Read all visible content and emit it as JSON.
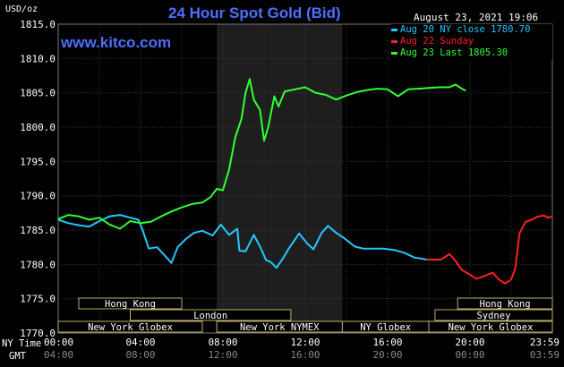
{
  "header": {
    "title": "24 Hour Spot Gold (Bid)",
    "unit": "USD/oz",
    "timestamp": "August 23, 2021 19:06",
    "site": "www.kitco.com"
  },
  "legend": [
    {
      "label": "Aug 20 NY close 1780.70",
      "color": "#22c8ff"
    },
    {
      "label": "Aug 22 Sunday",
      "color": "#ff2020"
    },
    {
      "label": "Aug 23 Last 1805.30",
      "color": "#30ff30"
    }
  ],
  "axis": {
    "x_row1_label": "NY Time",
    "x_row2_label": "GMT",
    "x_ticks_ny": [
      "00:00",
      "04:00",
      "08:00",
      "12:00",
      "16:00",
      "20:00",
      "23:59"
    ],
    "x_ticks_gmt": [
      "04:00",
      "08:00",
      "12:00",
      "16:00",
      "20:00",
      "00:00",
      "03:59"
    ]
  },
  "sessions": [
    {
      "label": "Hong Kong",
      "start": 1.0,
      "end": 6.0,
      "row": 0
    },
    {
      "label": "London",
      "start": 3.5,
      "end": 11.3,
      "row": 1
    },
    {
      "label": "New York Globex",
      "start": 0.0,
      "end": 7.0,
      "row": 2
    },
    {
      "label": "New York NYMEX",
      "start": 7.7,
      "end": 13.8,
      "row": 2
    },
    {
      "label": "NY Globex",
      "start": 13.8,
      "end": 18.0,
      "row": 2
    },
    {
      "label": "Hong Kong",
      "start": 19.4,
      "end": 24.0,
      "row": 0
    },
    {
      "label": "Sydney",
      "start": 18.3,
      "end": 24.0,
      "row": 1
    },
    {
      "label": "New York Globex",
      "start": 18.0,
      "end": 24.0,
      "row": 2
    }
  ],
  "chart_data": {
    "type": "line",
    "title": "24 Hour Spot Gold (Bid)",
    "ylabel": "USD/oz",
    "xlabel": "NY Time",
    "ylim": [
      1770,
      1815
    ],
    "yticks": [
      "1815.0",
      "1810.0",
      "1805.0",
      "1800.0",
      "1795.0",
      "1790.0",
      "1785.0",
      "1780.0",
      "1775.0",
      "1770.0"
    ],
    "xlim_hours": [
      0,
      24
    ],
    "x_ticks": [
      "00:00",
      "04:00",
      "08:00",
      "12:00",
      "16:00",
      "20:00",
      "23:59"
    ],
    "highlight_hours": [
      7.7,
      13.8
    ],
    "grid": true,
    "legend": "top-right",
    "series": [
      {
        "name": "Aug 20 NY close 1780.70",
        "color": "#22c8ff",
        "points": [
          [
            0.0,
            1786.5
          ],
          [
            0.5,
            1786.0
          ],
          [
            1.0,
            1785.7
          ],
          [
            1.5,
            1785.5
          ],
          [
            2.0,
            1786.3
          ],
          [
            2.5,
            1787.0
          ],
          [
            3.0,
            1787.2
          ],
          [
            3.5,
            1786.8
          ],
          [
            3.9,
            1786.5
          ],
          [
            4.1,
            1785.0
          ],
          [
            4.4,
            1782.3
          ],
          [
            4.8,
            1782.5
          ],
          [
            5.2,
            1781.2
          ],
          [
            5.5,
            1780.2
          ],
          [
            5.8,
            1782.5
          ],
          [
            6.2,
            1783.7
          ],
          [
            6.6,
            1784.6
          ],
          [
            7.0,
            1784.9
          ],
          [
            7.5,
            1784.2
          ],
          [
            7.9,
            1785.8
          ],
          [
            8.3,
            1784.3
          ],
          [
            8.7,
            1785.2
          ],
          [
            8.8,
            1782.0
          ],
          [
            9.1,
            1781.9
          ],
          [
            9.5,
            1784.3
          ],
          [
            9.8,
            1782.6
          ],
          [
            10.1,
            1780.6
          ],
          [
            10.3,
            1780.4
          ],
          [
            10.6,
            1779.5
          ],
          [
            10.9,
            1780.8
          ],
          [
            11.2,
            1782.3
          ],
          [
            11.7,
            1784.5
          ],
          [
            12.1,
            1783.0
          ],
          [
            12.4,
            1782.2
          ],
          [
            12.8,
            1784.6
          ],
          [
            13.1,
            1785.6
          ],
          [
            13.5,
            1784.6
          ],
          [
            13.9,
            1783.8
          ],
          [
            14.4,
            1782.6
          ],
          [
            14.8,
            1782.3
          ],
          [
            15.3,
            1782.3
          ],
          [
            15.8,
            1782.3
          ],
          [
            16.3,
            1782.1
          ],
          [
            16.8,
            1781.7
          ],
          [
            17.3,
            1781.0
          ],
          [
            17.9,
            1780.7
          ]
        ]
      },
      {
        "name": "Aug 22 Sunday",
        "color": "#ff2020",
        "points": [
          [
            17.9,
            1780.7
          ],
          [
            18.6,
            1780.7
          ],
          [
            19.0,
            1781.5
          ],
          [
            19.3,
            1780.5
          ],
          [
            19.6,
            1779.2
          ],
          [
            20.0,
            1778.5
          ],
          [
            20.3,
            1777.9
          ],
          [
            20.7,
            1778.3
          ],
          [
            21.1,
            1778.8
          ],
          [
            21.4,
            1777.8
          ],
          [
            21.7,
            1777.2
          ],
          [
            22.0,
            1777.8
          ],
          [
            22.2,
            1779.4
          ],
          [
            22.4,
            1784.5
          ],
          [
            22.7,
            1786.2
          ],
          [
            23.0,
            1786.5
          ],
          [
            23.3,
            1787.0
          ],
          [
            23.6,
            1787.1
          ],
          [
            23.8,
            1786.8
          ],
          [
            24.0,
            1787.0
          ]
        ]
      },
      {
        "name": "Aug 23 Last 1805.30",
        "color": "#30ff30",
        "points": [
          [
            0.0,
            1786.6
          ],
          [
            0.5,
            1787.2
          ],
          [
            1.0,
            1787.0
          ],
          [
            1.5,
            1786.5
          ],
          [
            2.0,
            1786.8
          ],
          [
            2.5,
            1785.8
          ],
          [
            3.0,
            1785.2
          ],
          [
            3.5,
            1786.3
          ],
          [
            4.0,
            1786.0
          ],
          [
            4.5,
            1786.2
          ],
          [
            5.0,
            1787.0
          ],
          [
            5.5,
            1787.7
          ],
          [
            6.0,
            1788.3
          ],
          [
            6.5,
            1788.8
          ],
          [
            7.0,
            1789.0
          ],
          [
            7.4,
            1789.8
          ],
          [
            7.7,
            1791.0
          ],
          [
            8.0,
            1790.8
          ],
          [
            8.3,
            1793.8
          ],
          [
            8.6,
            1798.5
          ],
          [
            8.9,
            1801.2
          ],
          [
            9.1,
            1805.0
          ],
          [
            9.3,
            1807.0
          ],
          [
            9.5,
            1804.0
          ],
          [
            9.8,
            1802.5
          ],
          [
            10.0,
            1798.0
          ],
          [
            10.2,
            1800.0
          ],
          [
            10.5,
            1804.5
          ],
          [
            10.7,
            1803.0
          ],
          [
            11.0,
            1805.2
          ],
          [
            11.5,
            1805.5
          ],
          [
            12.0,
            1805.8
          ],
          [
            12.5,
            1805.0
          ],
          [
            13.0,
            1804.7
          ],
          [
            13.5,
            1804.0
          ],
          [
            14.0,
            1804.6
          ],
          [
            14.5,
            1805.1
          ],
          [
            15.0,
            1805.4
          ],
          [
            15.5,
            1805.6
          ],
          [
            16.0,
            1805.5
          ],
          [
            16.5,
            1804.5
          ],
          [
            17.0,
            1805.5
          ],
          [
            17.5,
            1805.6
          ],
          [
            18.0,
            1805.7
          ],
          [
            18.5,
            1805.8
          ],
          [
            19.0,
            1805.8
          ],
          [
            19.3,
            1806.2
          ],
          [
            19.6,
            1805.6
          ],
          [
            19.8,
            1805.3
          ]
        ]
      }
    ]
  }
}
